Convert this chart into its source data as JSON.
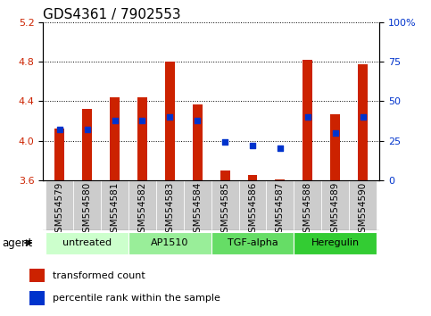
{
  "title": "GDS4361 / 7902553",
  "samples": [
    "GSM554579",
    "GSM554580",
    "GSM554581",
    "GSM554582",
    "GSM554583",
    "GSM554584",
    "GSM554585",
    "GSM554586",
    "GSM554587",
    "GSM554588",
    "GSM554589",
    "GSM554590"
  ],
  "red_values": [
    4.12,
    4.32,
    4.44,
    4.44,
    4.8,
    4.37,
    3.7,
    3.65,
    3.61,
    4.82,
    4.27,
    4.77
  ],
  "blue_percentile": [
    32,
    32,
    38,
    38,
    40,
    38,
    24,
    22,
    20,
    40,
    30,
    40
  ],
  "y_min": 3.6,
  "y_max": 5.2,
  "y_ticks_red": [
    3.6,
    4.0,
    4.4,
    4.8,
    5.2
  ],
  "y_ticks_blue_vals": [
    0,
    25,
    50,
    75,
    100
  ],
  "bar_bottom": 3.6,
  "bar_color": "#cc2200",
  "blue_color": "#0033cc",
  "agent_groups": [
    {
      "label": "untreated",
      "start": 0,
      "end": 3,
      "color": "#ccffcc"
    },
    {
      "label": "AP1510",
      "start": 3,
      "end": 6,
      "color": "#99ee99"
    },
    {
      "label": "TGF-alpha",
      "start": 6,
      "end": 9,
      "color": "#66dd66"
    },
    {
      "label": "Heregulin",
      "start": 9,
      "end": 12,
      "color": "#33cc33"
    }
  ],
  "legend_red_label": "transformed count",
  "legend_blue_label": "percentile rank within the sample",
  "agent_label": "agent",
  "title_fontsize": 11,
  "tick_fontsize": 8,
  "sample_fontsize": 7.5,
  "bar_width": 0.35
}
